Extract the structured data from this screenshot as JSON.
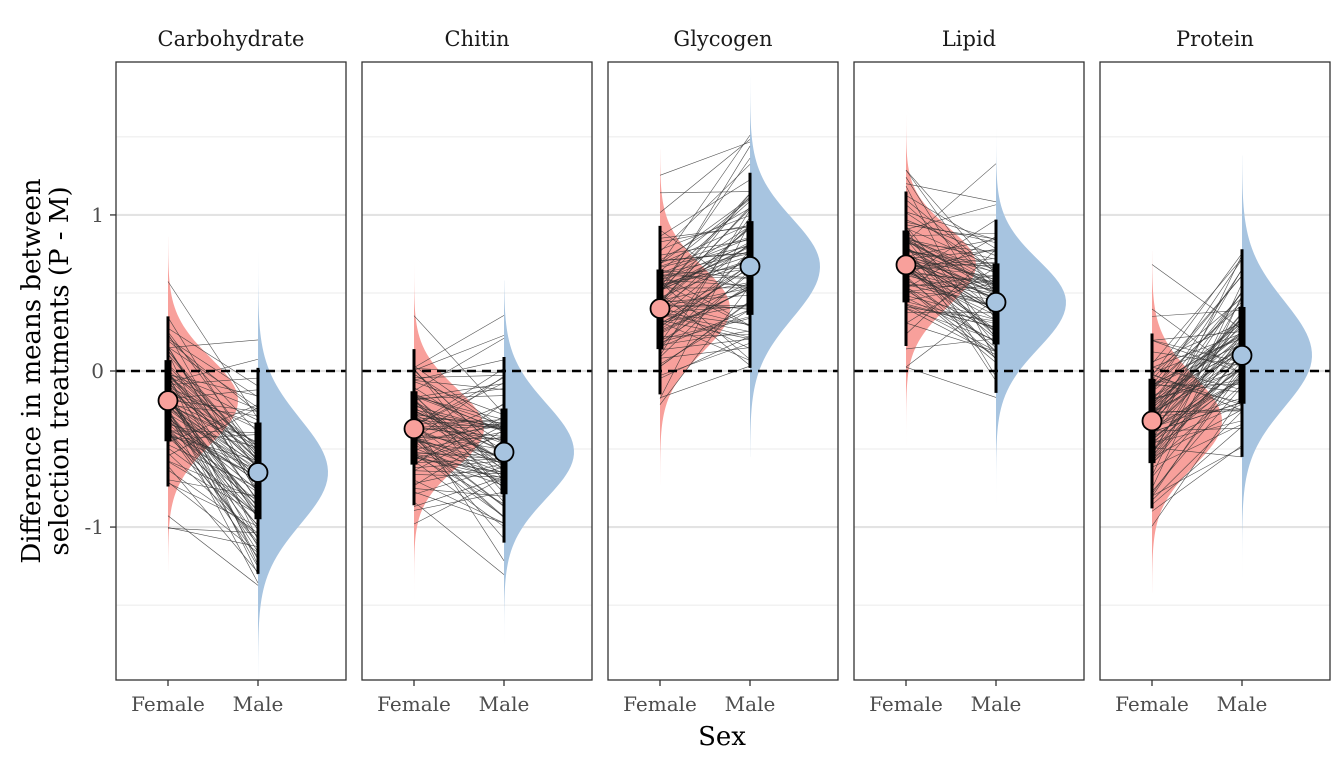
{
  "chart_data": {
    "type": "faceted-halfeye",
    "xlabel": "Sex",
    "ylabel": [
      "Difference in means between",
      "selection treatments (P - M)"
    ],
    "categories": [
      "Female",
      "Male"
    ],
    "ylim": [
      -1.98,
      1.98
    ],
    "yticks": [
      -1,
      0,
      1
    ],
    "reference_line": 0,
    "grid": true,
    "colors": {
      "Female": "#f8a09b",
      "Male": "#a7c4e0",
      "line": "#333333"
    },
    "facets": [
      {
        "name": "Carbohydrate",
        "Female": {
          "median": -0.19,
          "q66": [
            -0.45,
            0.07
          ],
          "q95": [
            -0.74,
            0.35
          ],
          "range": [
            -1.28,
            0.86
          ]
        },
        "Male": {
          "median": -0.65,
          "q66": [
            -0.95,
            -0.33
          ],
          "q95": [
            -1.3,
            0.02
          ],
          "range": [
            -1.98,
            0.76
          ]
        }
      },
      {
        "name": "Chitin",
        "Female": {
          "median": -0.37,
          "q66": [
            -0.6,
            -0.13
          ],
          "q95": [
            -0.86,
            0.14
          ],
          "range": [
            -1.72,
            0.7
          ]
        },
        "Male": {
          "median": -0.52,
          "q66": [
            -0.79,
            -0.24
          ],
          "q95": [
            -1.1,
            0.09
          ],
          "range": [
            -1.75,
            0.58
          ]
        }
      },
      {
        "name": "Glycogen",
        "Female": {
          "median": 0.4,
          "q66": [
            0.14,
            0.65
          ],
          "q95": [
            -0.15,
            0.93
          ],
          "range": [
            -0.73,
            1.42
          ]
        },
        "Male": {
          "median": 0.67,
          "q66": [
            0.36,
            0.96
          ],
          "q95": [
            0.02,
            1.27
          ],
          "range": [
            -0.55,
            1.88
          ]
        }
      },
      {
        "name": "Lipid",
        "Female": {
          "median": 0.68,
          "q66": [
            0.44,
            0.9
          ],
          "q95": [
            0.16,
            1.15
          ],
          "range": [
            -0.5,
            1.64
          ]
        },
        "Male": {
          "median": 0.44,
          "q66": [
            0.17,
            0.69
          ],
          "q95": [
            -0.14,
            0.97
          ],
          "range": [
            -1.05,
            1.55
          ]
        }
      },
      {
        "name": "Protein",
        "Female": {
          "median": -0.32,
          "q66": [
            -0.59,
            -0.05
          ],
          "q95": [
            -0.88,
            0.24
          ],
          "range": [
            -1.42,
            0.77
          ]
        },
        "Male": {
          "median": 0.1,
          "q66": [
            -0.21,
            0.41
          ],
          "q95": [
            -0.55,
            0.78
          ],
          "range": [
            -1.32,
            1.38
          ]
        }
      }
    ]
  }
}
